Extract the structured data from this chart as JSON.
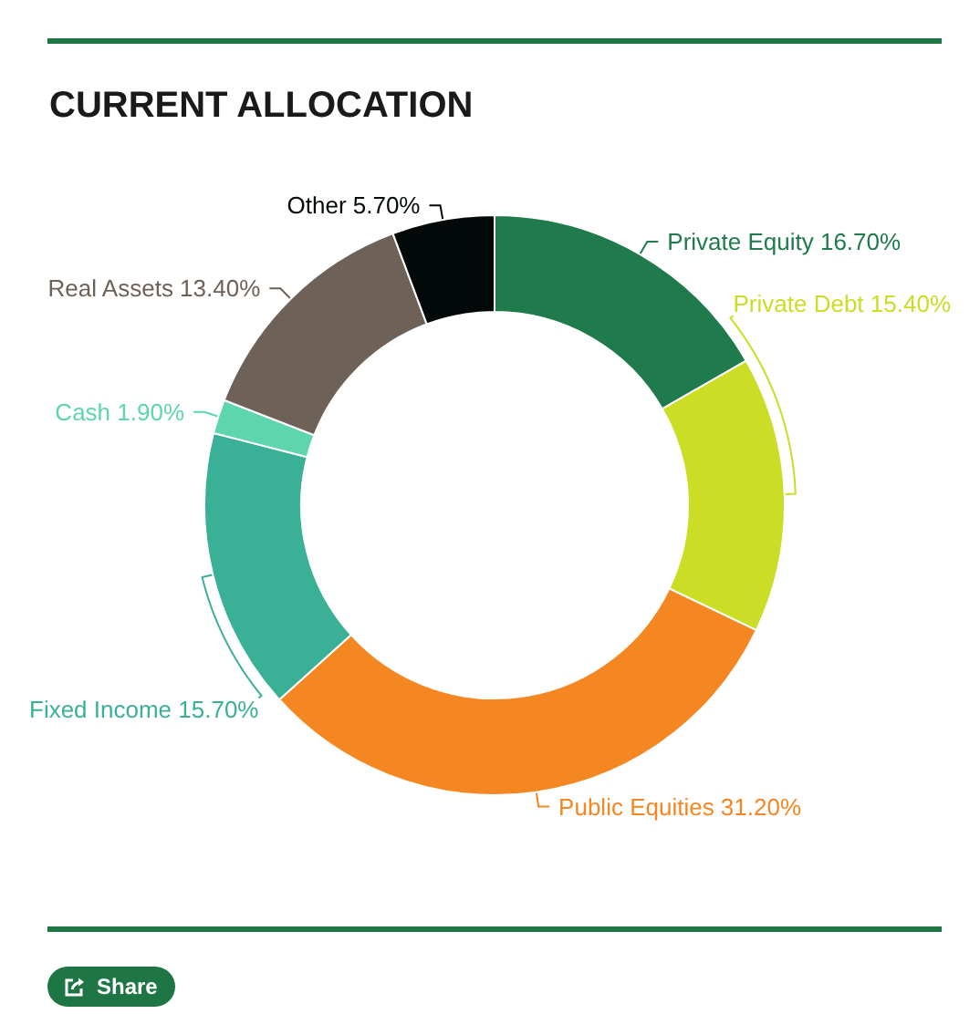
{
  "chart_data": {
    "type": "donut",
    "title": "CURRENT ALLOCATION",
    "categories": [
      "Private Equity",
      "Private Debt",
      "Public Equities",
      "Fixed Income",
      "Cash",
      "Real Assets",
      "Other"
    ],
    "values": [
      16.7,
      15.4,
      31.2,
      15.7,
      1.9,
      13.4,
      5.7
    ],
    "colors": [
      "#1f7a4c",
      "#cbdd24",
      "#f58723",
      "#3ab197",
      "#5dd6ad",
      "#6e6258",
      "#030808"
    ],
    "value_labels": [
      "16.70%",
      "15.40%",
      "31.20%",
      "15.70%",
      "1.90%",
      "13.40%",
      "5.70%"
    ],
    "annotations": [
      "Share"
    ]
  }
}
